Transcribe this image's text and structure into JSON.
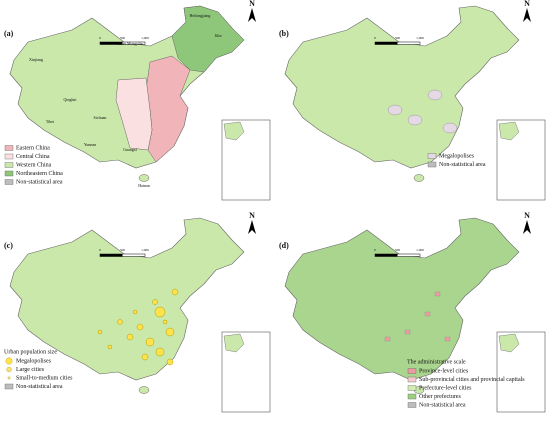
{
  "panels": [
    {
      "label": "(a)",
      "north": "N",
      "scale_labels": [
        "0",
        "500",
        "1,000"
      ],
      "place_names": [
        "Heilongjiang",
        "Jilin",
        "Inner Mongolia",
        "Xinjiang",
        "Qinghai",
        "Tibet",
        "Sichuan",
        "Yunnan",
        "Guangxi",
        "Hainan"
      ],
      "legend": [
        "Eastern China",
        "Central China",
        "Western China",
        "Northeastern China",
        "Non-statistical area"
      ]
    },
    {
      "label": "(b)",
      "north": "N",
      "scale_labels": [
        "0",
        "500",
        "1,000"
      ],
      "legend": [
        "Megalopolises",
        "Non-statistical area"
      ]
    },
    {
      "label": "(c)",
      "north": "N",
      "scale_labels": [
        "0",
        "500",
        "1,000"
      ],
      "legend_title": "Urban population size",
      "legend": [
        "Megalopolises",
        "Large cities",
        "Small-to-medium cities",
        "Non-statistical area"
      ]
    },
    {
      "label": "(d)",
      "north": "N",
      "scale_labels": [
        "0",
        "500",
        "1,000"
      ],
      "legend_title": "The administrative scale",
      "legend": [
        "Province-level cities",
        "Sub-provincial cities and provincial capitals",
        "Prefecture-level cities",
        "Other prefectures",
        "Non-statistical area"
      ]
    }
  ]
}
